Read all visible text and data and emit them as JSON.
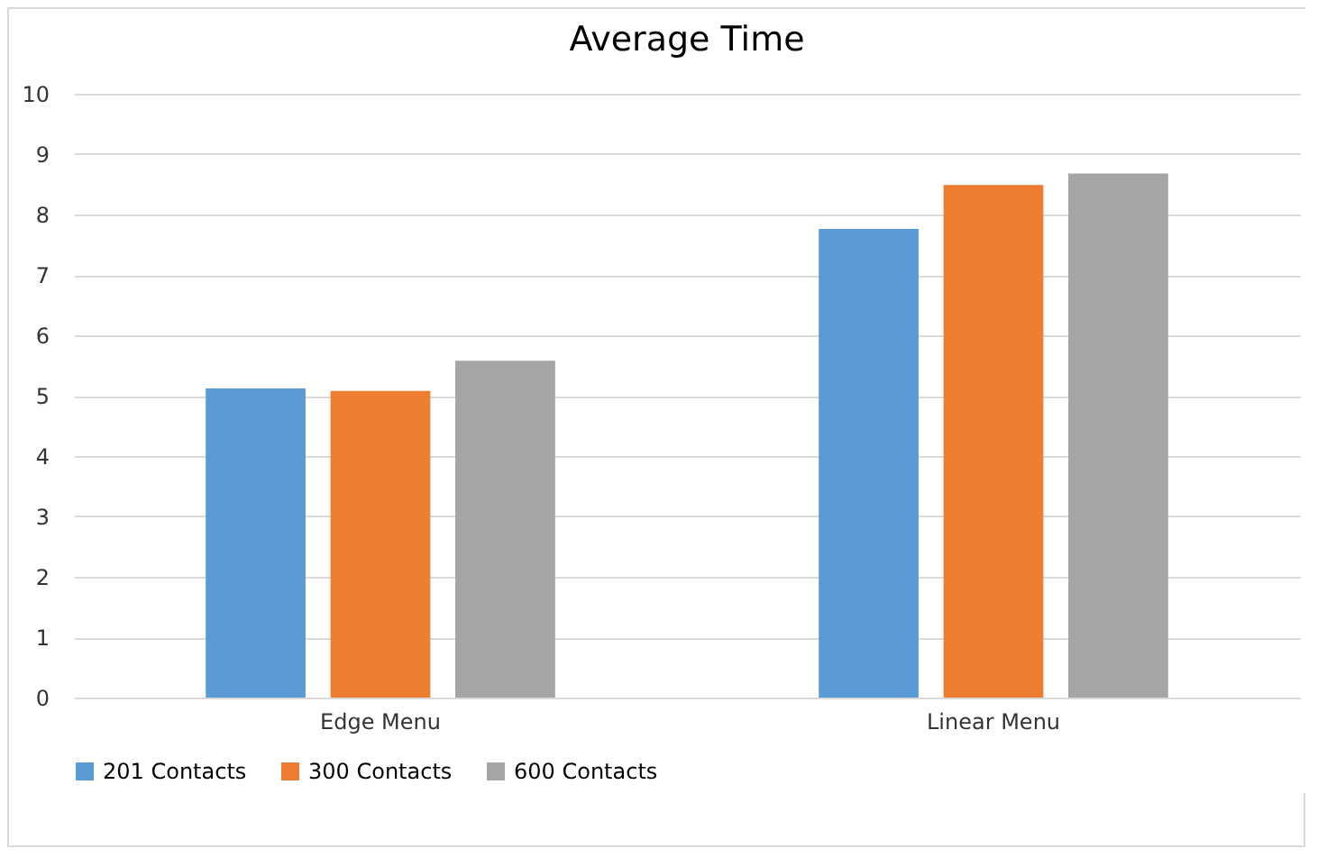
{
  "chart_data": {
    "type": "bar",
    "title": "Average Time",
    "categories": [
      "Edge Menu",
      "Linear Menu"
    ],
    "series": [
      {
        "name": "201 Contacts",
        "color": "#5b9bd5",
        "values": [
          5.12,
          7.76
        ]
      },
      {
        "name": "300 Contacts",
        "color": "#ed7d31",
        "values": [
          5.08,
          8.49
        ]
      },
      {
        "name": "600 Contacts",
        "color": "#a5a5a5",
        "values": [
          5.58,
          8.68
        ]
      }
    ],
    "ylim": [
      0,
      10
    ],
    "yticks": [
      0,
      1,
      2,
      3,
      4,
      5,
      6,
      7,
      8,
      9,
      10
    ],
    "grid": "y",
    "legend": "bottom"
  }
}
